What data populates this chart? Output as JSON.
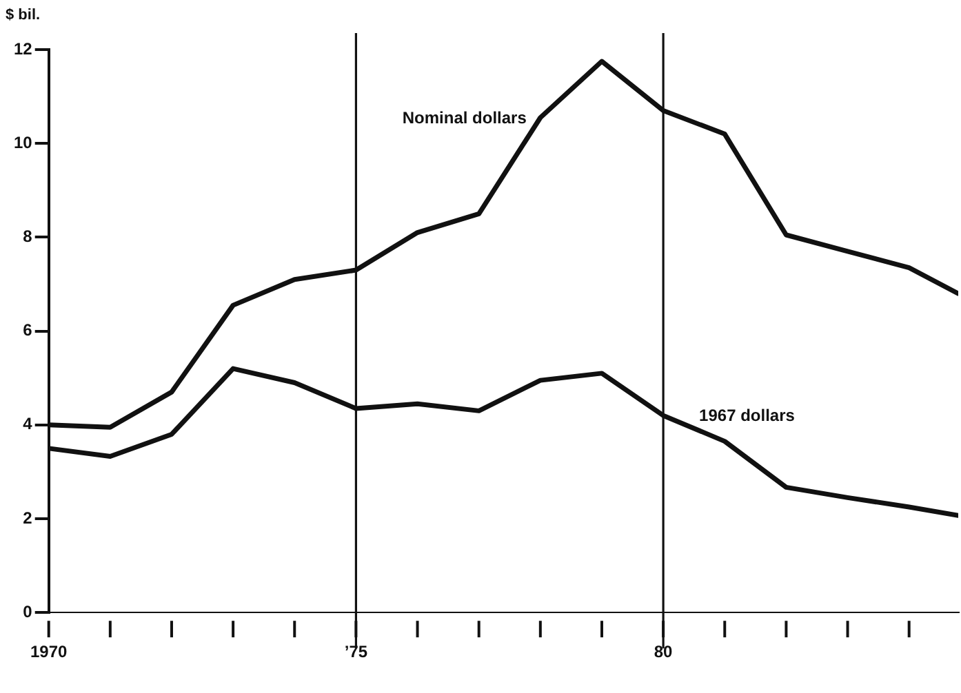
{
  "chart_data": {
    "type": "line",
    "ylabel": "$ bil.",
    "xlim": [
      1970,
      1984.8
    ],
    "ylim": [
      0,
      12
    ],
    "xticks": [
      {
        "value": 1970,
        "label": "1970"
      },
      {
        "value": 1971,
        "label": null
      },
      {
        "value": 1972,
        "label": null
      },
      {
        "value": 1973,
        "label": null
      },
      {
        "value": 1974,
        "label": null
      },
      {
        "value": 1975,
        "label": "’75"
      },
      {
        "value": 1976,
        "label": null
      },
      {
        "value": 1977,
        "label": null
      },
      {
        "value": 1978,
        "label": null
      },
      {
        "value": 1979,
        "label": null
      },
      {
        "value": 1980,
        "label": "80"
      },
      {
        "value": 1981,
        "label": null
      },
      {
        "value": 1982,
        "label": null
      },
      {
        "value": 1983,
        "label": null
      },
      {
        "value": 1984,
        "label": null
      }
    ],
    "yticks": [
      0,
      2,
      4,
      6,
      8,
      10,
      12
    ],
    "x": [
      1970,
      1971,
      1972,
      1973,
      1974,
      1975,
      1976,
      1977,
      1978,
      1979,
      1980,
      1981,
      1982,
      1983,
      1984,
      1984.8
    ],
    "series": [
      {
        "name": "Nominal dollars",
        "color": "#111111",
        "values": [
          4.0,
          3.95,
          4.7,
          6.55,
          7.1,
          7.3,
          8.1,
          8.5,
          10.55,
          11.75,
          10.7,
          10.2,
          8.05,
          7.7,
          7.35,
          6.8
        ]
      },
      {
        "name": "1967 dollars",
        "color": "#111111",
        "values": [
          3.5,
          3.33,
          3.8,
          5.2,
          4.9,
          4.35,
          4.45,
          4.3,
          4.95,
          5.1,
          4.2,
          3.65,
          2.67,
          2.45,
          2.25,
          2.07
        ]
      }
    ],
    "ref_lines": [
      {
        "axis": "x",
        "value": 1975,
        "color": "#111111"
      },
      {
        "axis": "x",
        "value": 1980,
        "color": "#111111"
      }
    ],
    "grid": false,
    "legend": false,
    "marker": "none",
    "line_style": "solid"
  }
}
